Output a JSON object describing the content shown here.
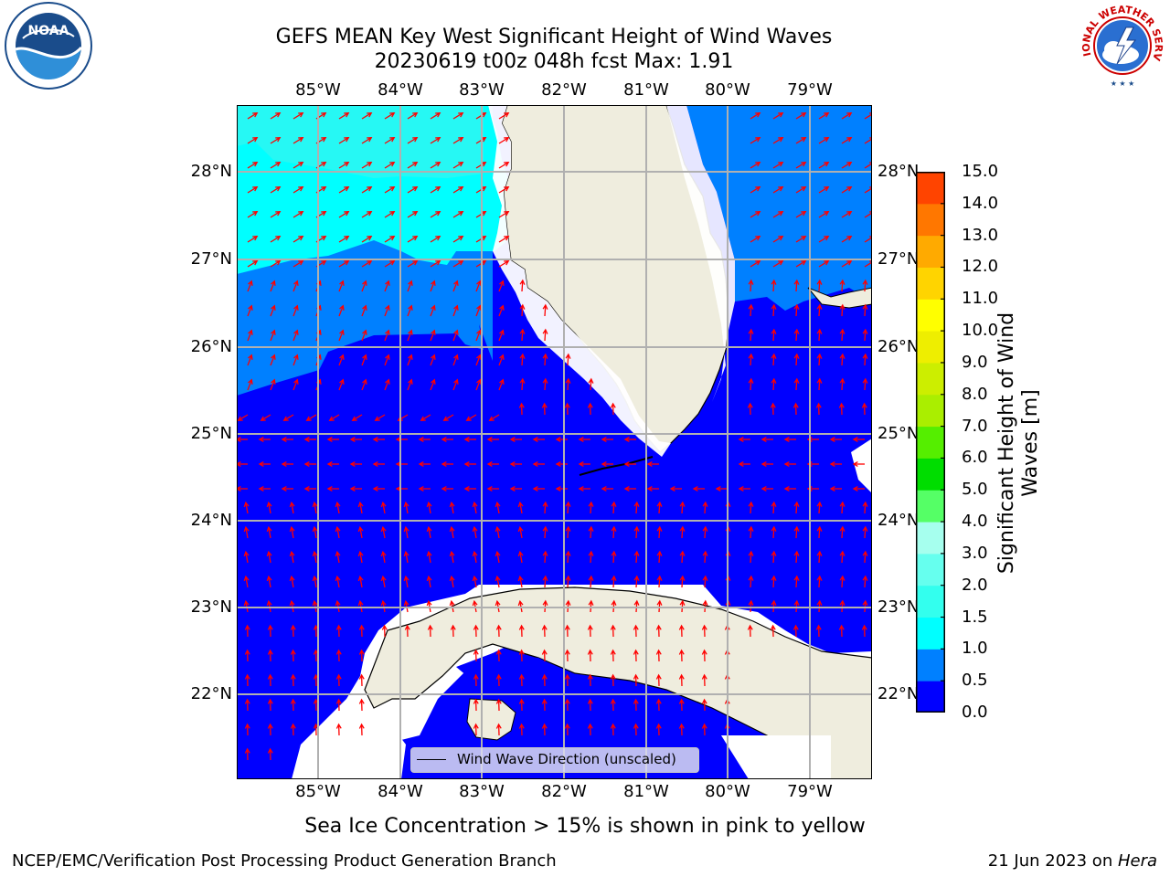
{
  "title_line1": "GEFS MEAN Key West Significant Height of Wind Waves",
  "title_line2": "20230619 t00z 048h fcst   Max: 1.91",
  "lon_labels": [
    "85°W",
    "84°W",
    "83°W",
    "82°W",
    "81°W",
    "80°W",
    "79°W"
  ],
  "lat_labels": [
    "28°N",
    "27°N",
    "26°N",
    "25°N",
    "24°N",
    "23°N",
    "22°N"
  ],
  "legend_label": "Wind Wave Direction (unscaled)",
  "colorbar": {
    "label_line1": "Significant Height of Wind",
    "label_line2": "Waves [m]",
    "ticks": [
      "0.0",
      "0.5",
      "1.0",
      "1.5",
      "2.0",
      "3.0",
      "4.0",
      "5.0",
      "6.0",
      "7.0",
      "8.0",
      "9.0",
      "10.0",
      "11.0",
      "12.0",
      "13.0",
      "14.0",
      "15.0"
    ],
    "colors": [
      "#0000ff",
      "#0080ff",
      "#00ffff",
      "#33ffee",
      "#66ffee",
      "#a6ffee",
      "#55ff66",
      "#00dd00",
      "#55ee00",
      "#aaee00",
      "#ccee00",
      "#eeee00",
      "#ffff00",
      "#ffd400",
      "#ffaa00",
      "#ff7700",
      "#ff4400",
      "#ff0000"
    ]
  },
  "subtitle": "Sea Ice Concentration > 15% is shown in pink to yellow",
  "footer_left": "NCEP/EMC/Verification Post Processing Product Generation Branch",
  "footer_date": "21 Jun 2023 on ",
  "footer_host": "Hera",
  "logos": {
    "noaa_text": "NOAA",
    "nws_text": "NATIONAL WEATHER SERVICE"
  },
  "map_colors": {
    "land": "#efedde",
    "wave_00_05": "#0000ff",
    "wave_05_10": "#0080ff",
    "wave_10_15": "#00ffff",
    "arrow": "#ff0000"
  }
}
